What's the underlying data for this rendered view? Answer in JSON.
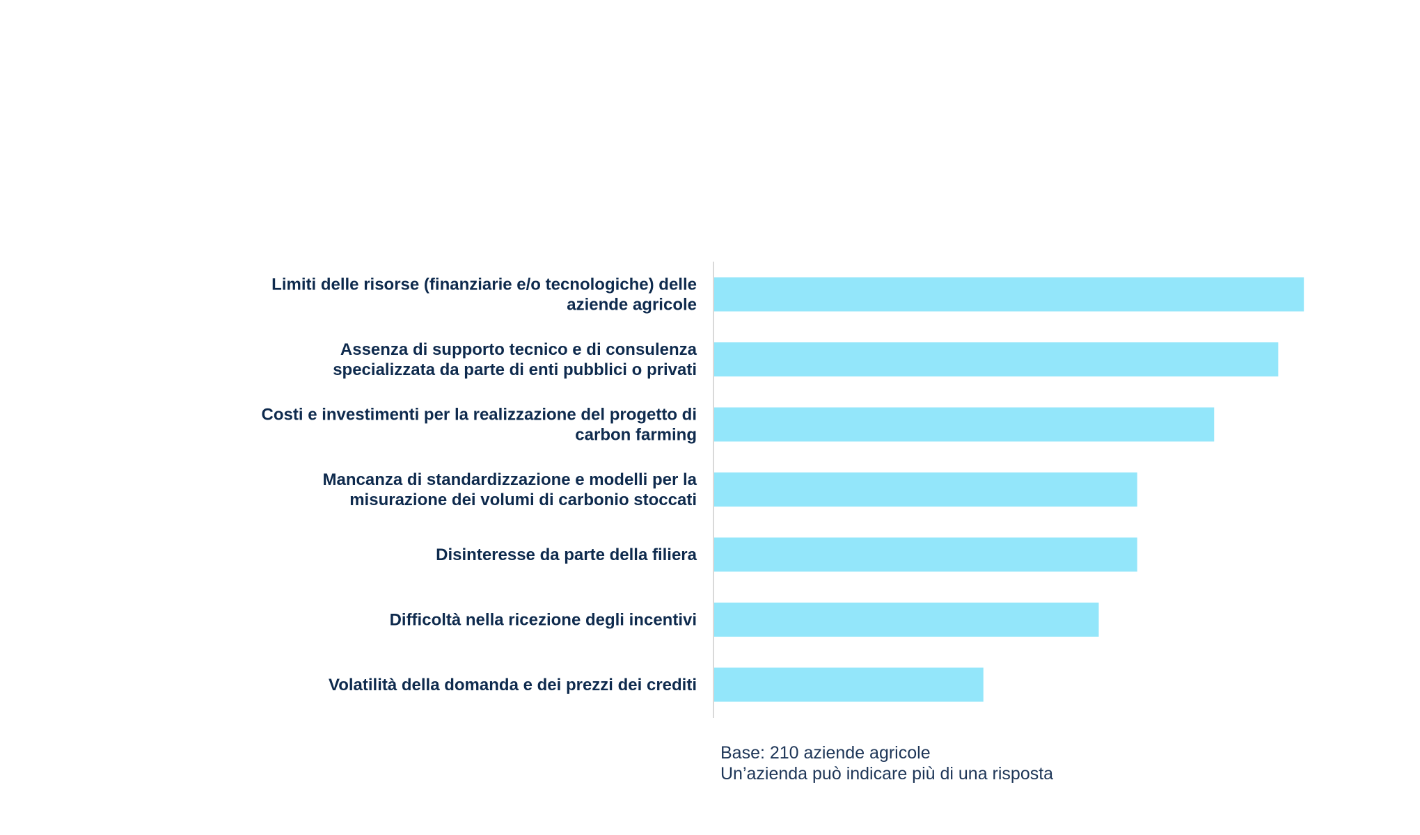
{
  "chart_data": {
    "type": "bar",
    "orientation": "horizontal",
    "categories": [
      [
        "Limiti delle risorse (finanziarie e/o tecnologiche) delle",
        "aziende agricole"
      ],
      [
        "Assenza di supporto tecnico e di consulenza",
        "specializzata da parte di enti pubblici o privati"
      ],
      [
        "Costi e investimenti per la realizzazione del progetto di",
        "carbon farming"
      ],
      [
        "Mancanza di standardizzazione e modelli per la",
        "misurazione dei volumi di carbonio stoccati"
      ],
      [
        "Disinteresse da parte della filiera"
      ],
      [
        "Difficoltà nella ricezione degli incentivi"
      ],
      [
        "Volatilità della domanda e dei prezzi dei crediti"
      ]
    ],
    "values": [
      46,
      44,
      39,
      33,
      33,
      30,
      21
    ],
    "xlim": [
      0,
      60
    ],
    "bar_color": "#93e6fa",
    "axis_color": "#d9d9d9",
    "label_color": "#0e2a4d",
    "grid": false,
    "legend": "none"
  },
  "notes": {
    "base": "Base: 210 aziende agricole",
    "multi": "Un’azienda può indicare più di una risposta"
  }
}
